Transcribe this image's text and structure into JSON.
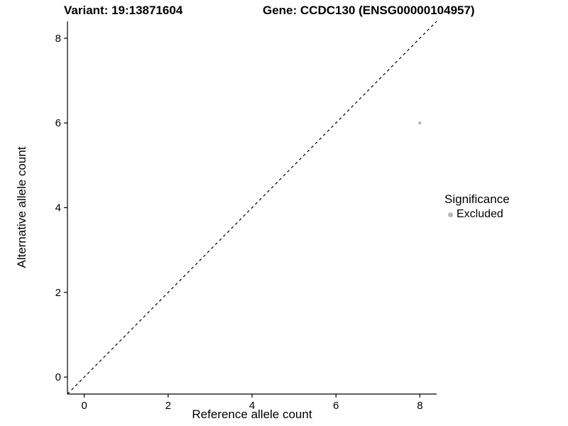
{
  "chart_data": {
    "type": "scatter",
    "titles": {
      "left": "Variant: 19:13871604",
      "right": "Gene: CCDC130 (ENSG00000104957)"
    },
    "xlabel": "Reference allele count",
    "ylabel": "Alternative allele count",
    "xlim": [
      -0.4,
      8.4
    ],
    "ylim": [
      -0.4,
      8.4
    ],
    "x_ticks": [
      0,
      2,
      4,
      6,
      8
    ],
    "y_ticks": [
      0,
      2,
      4,
      6,
      8
    ],
    "grid": false,
    "background": "#ffffff",
    "axis_color": "#000000",
    "identity_line": {
      "style": "dashed",
      "color": "#000000",
      "from": [
        -0.4,
        -0.4
      ],
      "to": [
        8.4,
        8.4
      ]
    },
    "series": [
      {
        "name": "Excluded",
        "color": "#b8b8b8",
        "points": [
          [
            8,
            6
          ]
        ]
      }
    ],
    "legend": {
      "title": "Significance",
      "position": "right",
      "entries": [
        {
          "label": "Excluded",
          "color": "#b8b8b8"
        }
      ]
    }
  }
}
